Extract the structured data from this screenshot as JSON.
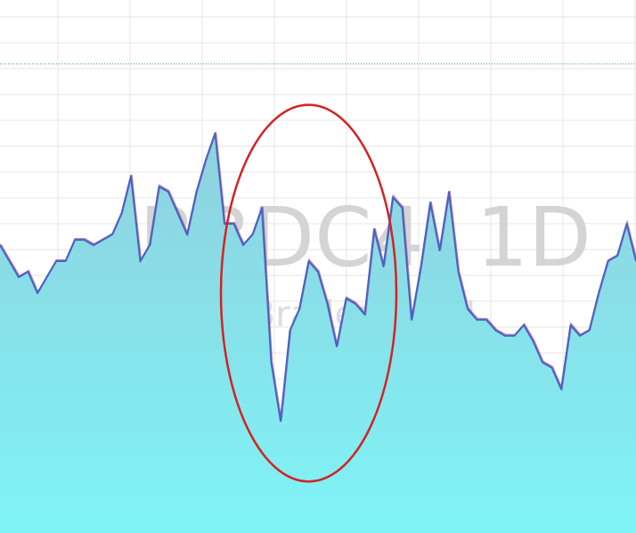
{
  "chart_data": {
    "type": "area",
    "watermark": {
      "symbol": "BBDC4, 1D",
      "description": "Bradesco PN"
    },
    "ylim": [
      0,
      100
    ],
    "grid": true,
    "reference_line_value": 88,
    "colors": {
      "area_top": "#8fd0de",
      "area_bottom": "#7ff4f6",
      "line": "#4a62c0",
      "line_alt": "#8a1a86",
      "reference_line": "#2aa0b8",
      "highlight_circle": "#d42222",
      "grid": "#e6e6e6"
    },
    "series": [
      {
        "name": "area",
        "values": [
          54,
          51,
          48,
          49,
          45,
          48,
          51,
          51,
          55,
          55,
          54,
          55,
          56,
          60,
          67,
          51,
          54,
          65,
          64,
          60,
          56,
          64,
          70,
          75,
          58,
          58,
          54,
          56,
          61,
          32,
          21,
          38,
          42,
          51,
          49,
          43,
          35,
          44,
          43,
          41,
          57,
          50,
          63,
          61,
          40,
          50,
          62,
          53,
          64,
          49,
          42,
          40,
          40,
          38,
          37,
          37,
          39,
          36,
          32,
          31,
          27,
          39,
          37,
          38,
          45,
          51,
          52,
          58,
          51
        ]
      },
      {
        "name": "line",
        "values": [
          54,
          51,
          48,
          49,
          45,
          48,
          51,
          51,
          55,
          55,
          54,
          55,
          56,
          60,
          67,
          51,
          54,
          65,
          64,
          60,
          56,
          64,
          70,
          75,
          58,
          58,
          54,
          56,
          61,
          32,
          21,
          38,
          42,
          51,
          49,
          43,
          35,
          44,
          43,
          41,
          57,
          50,
          63,
          61,
          40,
          50,
          62,
          53,
          64,
          49,
          42,
          40,
          40,
          38,
          37,
          37,
          39,
          36,
          32,
          31,
          27,
          39,
          37,
          38,
          45,
          51,
          52,
          58,
          51
        ]
      }
    ],
    "line_values": [
      54,
      51,
      48,
      49,
      45,
      48,
      51,
      51,
      55,
      55,
      54,
      55,
      56,
      60,
      67,
      51,
      54,
      65,
      64,
      60,
      56,
      64,
      70,
      75,
      58,
      58,
      54,
      56,
      61,
      32,
      21,
      38,
      42,
      51,
      49,
      43,
      35,
      44,
      43,
      41,
      57,
      50,
      63,
      61,
      40,
      50,
      62,
      53,
      64,
      49,
      42,
      40,
      40,
      38,
      37,
      37,
      39,
      36,
      32,
      31,
      27,
      39,
      37,
      38,
      45,
      51,
      52,
      58,
      51
    ],
    "area_values": [
      54,
      51,
      48,
      49,
      45,
      48,
      51,
      51,
      55,
      55,
      54,
      55,
      56,
      60,
      67,
      51,
      54,
      65,
      64,
      60,
      56,
      64,
      70,
      75,
      58,
      58,
      54,
      56,
      61,
      32,
      21,
      38,
      42,
      51,
      49,
      43,
      35,
      44,
      43,
      41,
      57,
      50,
      63,
      61,
      40,
      50,
      62,
      53,
      64,
      49,
      42,
      40,
      40,
      38,
      37,
      37,
      39,
      36,
      32,
      31,
      27,
      39,
      37,
      38,
      45,
      51,
      52,
      58,
      51
    ],
    "highlight": {
      "shape": "ellipse",
      "center_index": 33,
      "span_indices": 18,
      "value_range": [
        10,
        80
      ]
    }
  }
}
